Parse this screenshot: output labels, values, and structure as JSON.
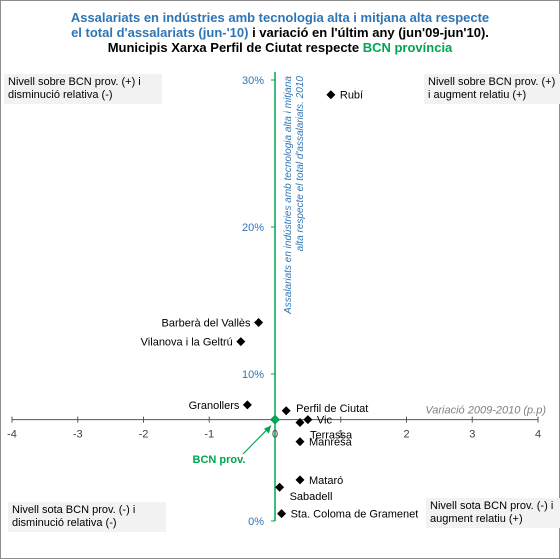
{
  "title": {
    "line1": "Assalariats en indústries amb tecnologia alta i mitjana alta respecte",
    "line2_blue": "el total d'assalariats  (jun-'10)",
    "line2_dark": " i variació en l'últim any (jun'09-jun'10).",
    "line3_dark": "Municipis Xarxa Perfil de Ciutat respecte ",
    "line3_green": "BCN província"
  },
  "quadrants": {
    "top_left": "Nivell sobre BCN prov. (+) i disminució relativa (-)",
    "top_right": "Nivell sobre BCN prov. (+) i augment relatiu (+)",
    "bottom_left": "Nivell sota BCN prov. (-) i disminució relativa (-)",
    "bottom_right": "Nivell sota BCN prov. (-) i augment relatiu (+)"
  },
  "colors": {
    "title_blue": "#2e75b6",
    "reference_green": "#00a550",
    "marker": "#000000",
    "axis_label": "#2e75b6"
  },
  "chart_data": {
    "type": "scatter",
    "xlabel": "Variació  2009-2010 (p.p)",
    "ylabel": "Assalariats en indústries amb tecnologia alta i mitjana alta respecte el total d'assalariats. 2010",
    "xlim": [
      -4,
      4
    ],
    "ylim": [
      0,
      30
    ],
    "x_ticks": [
      -4,
      -3,
      -2,
      -1,
      0,
      1,
      2,
      3,
      4
    ],
    "x_tick_labels": [
      "-4",
      "-3",
      "-2",
      "-1",
      "0",
      "1",
      "2",
      "3",
      "4"
    ],
    "y_ticks": [
      0,
      10,
      20,
      30
    ],
    "y_tick_labels": [
      "0%",
      "10%",
      "20%",
      "30%"
    ],
    "reference": {
      "label": "BCN prov.",
      "x": 0,
      "y": 6.9
    },
    "points": [
      {
        "label": "Rubí",
        "x": 0.85,
        "y": 29.0
      },
      {
        "label": "Barberà del Vallès",
        "x": -0.25,
        "y": 13.5
      },
      {
        "label": "Vilanova i la Geltrú",
        "x": -0.52,
        "y": 12.2
      },
      {
        "label": "Granollers",
        "x": -0.42,
        "y": 7.9
      },
      {
        "label": "Perfil de Ciutat",
        "x": 0.17,
        "y": 7.5
      },
      {
        "label": "Vic",
        "x": 0.5,
        "y": 6.9
      },
      {
        "label": "Terrassa",
        "x": 0.38,
        "y": 6.7
      },
      {
        "label": "Manresa",
        "x": 0.38,
        "y": 5.4
      },
      {
        "label": "Mataró",
        "x": 0.38,
        "y": 2.8
      },
      {
        "label": "Sabadell",
        "x": 0.07,
        "y": 2.3
      },
      {
        "label": "Sta. Coloma de Gramenet",
        "x": 0.1,
        "y": 0.5
      }
    ]
  }
}
